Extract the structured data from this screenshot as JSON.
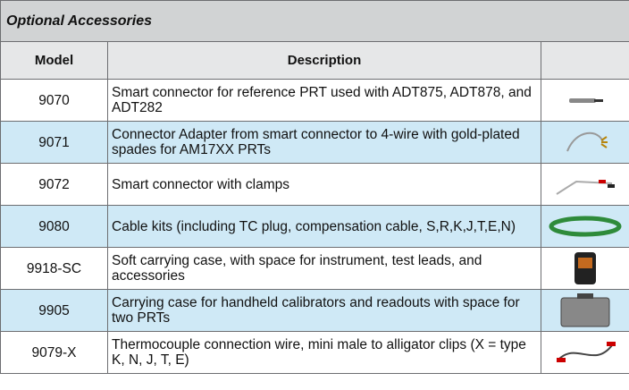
{
  "header": {
    "title": "Optional Accessories"
  },
  "table": {
    "columns": [
      "Model",
      "Description"
    ],
    "rows": [
      [
        "9070",
        "Smart connector for reference PRT used with ADT875, ADT878, and ADT282"
      ],
      [
        "9071",
        "Connector Adapter from smart connector to 4-wire with gold-plated spades for AM17XX PRTs"
      ],
      [
        "9072",
        "Smart connector with clamps"
      ],
      [
        "9080",
        "Cable kits (including TC plug, compensation cable, S,R,K,J,T,E,N)"
      ],
      [
        "9918-SC",
        "Soft carrying case, with space for instrument, test leads, and accessories"
      ],
      [
        "9905",
        "Carrying case for handheld calibrators and readouts with space for two PRTs"
      ],
      [
        "9079-X",
        "Thermocouple connection wire, mini male to alligator clips (X = type K, N, J, T, E)"
      ]
    ]
  }
}
